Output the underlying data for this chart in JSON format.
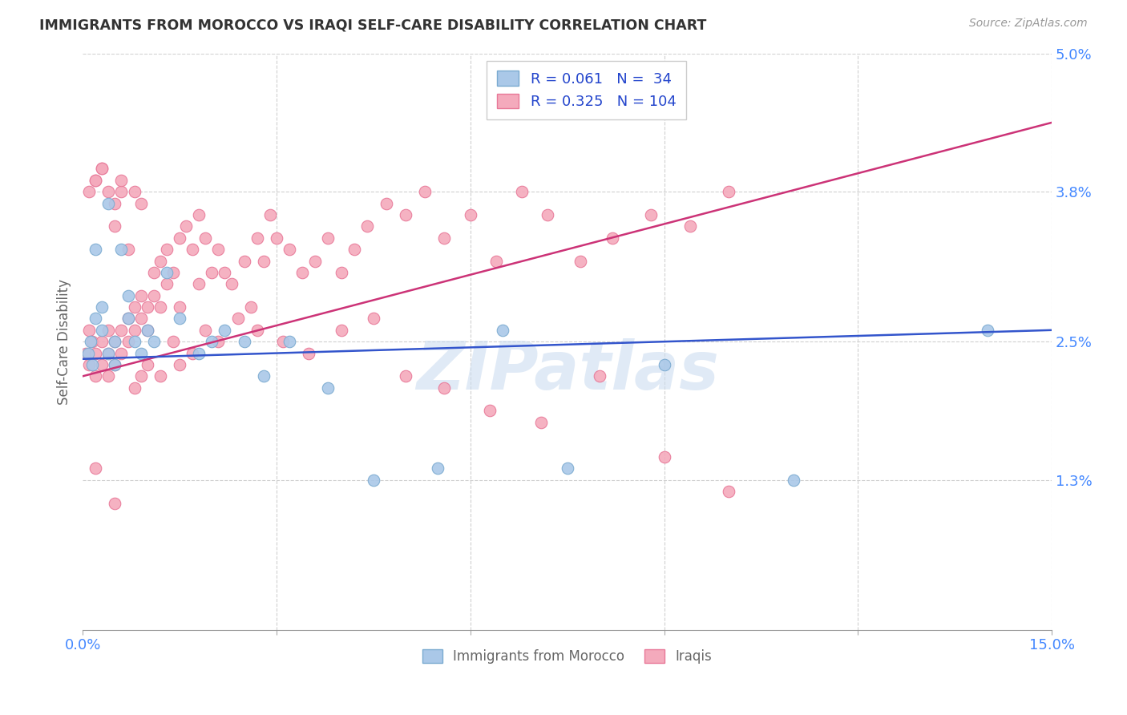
{
  "title": "IMMIGRANTS FROM MOROCCO VS IRAQI SELF-CARE DISABILITY CORRELATION CHART",
  "source": "Source: ZipAtlas.com",
  "ylabel_label": "Self-Care Disability",
  "x_min": 0.0,
  "x_max": 0.15,
  "y_min": 0.0,
  "y_max": 0.05,
  "grid_color": "#d0d0d0",
  "background_color": "#ffffff",
  "watermark": "ZIPatlas",
  "morocco_color": "#aac8e8",
  "iraq_color": "#f4aabc",
  "morocco_edge": "#7aaad0",
  "iraq_edge": "#e87898",
  "trend_morocco_color": "#3355cc",
  "trend_iraq_color": "#cc3377",
  "legend_R_morocco": "0.061",
  "legend_N_morocco": "34",
  "legend_R_iraq": "0.325",
  "legend_N_iraq": "104",
  "morocco_x": [
    0.0008,
    0.0012,
    0.0015,
    0.002,
    0.002,
    0.003,
    0.003,
    0.004,
    0.004,
    0.005,
    0.005,
    0.006,
    0.007,
    0.007,
    0.008,
    0.009,
    0.01,
    0.011,
    0.013,
    0.015,
    0.018,
    0.02,
    0.022,
    0.025,
    0.028,
    0.032,
    0.038,
    0.045,
    0.055,
    0.065,
    0.075,
    0.09,
    0.11,
    0.14
  ],
  "morocco_y": [
    0.024,
    0.025,
    0.023,
    0.027,
    0.033,
    0.028,
    0.026,
    0.037,
    0.024,
    0.025,
    0.023,
    0.033,
    0.029,
    0.027,
    0.025,
    0.024,
    0.026,
    0.025,
    0.031,
    0.027,
    0.024,
    0.025,
    0.026,
    0.025,
    0.022,
    0.025,
    0.021,
    0.013,
    0.014,
    0.026,
    0.014,
    0.023,
    0.013,
    0.026
  ],
  "iraq_x": [
    0.0005,
    0.001,
    0.001,
    0.0015,
    0.002,
    0.002,
    0.002,
    0.003,
    0.003,
    0.003,
    0.004,
    0.004,
    0.004,
    0.005,
    0.005,
    0.005,
    0.006,
    0.006,
    0.006,
    0.007,
    0.007,
    0.007,
    0.008,
    0.008,
    0.008,
    0.009,
    0.009,
    0.009,
    0.01,
    0.01,
    0.011,
    0.011,
    0.012,
    0.012,
    0.013,
    0.013,
    0.014,
    0.015,
    0.015,
    0.016,
    0.017,
    0.018,
    0.018,
    0.019,
    0.02,
    0.021,
    0.022,
    0.023,
    0.025,
    0.026,
    0.027,
    0.028,
    0.029,
    0.03,
    0.032,
    0.034,
    0.036,
    0.038,
    0.04,
    0.042,
    0.044,
    0.047,
    0.05,
    0.053,
    0.056,
    0.06,
    0.064,
    0.068,
    0.072,
    0.077,
    0.082,
    0.088,
    0.094,
    0.1,
    0.001,
    0.002,
    0.003,
    0.004,
    0.005,
    0.006,
    0.008,
    0.009,
    0.01,
    0.012,
    0.014,
    0.015,
    0.017,
    0.019,
    0.021,
    0.024,
    0.027,
    0.031,
    0.035,
    0.04,
    0.045,
    0.05,
    0.056,
    0.063,
    0.071,
    0.08,
    0.09,
    0.1,
    0.002,
    0.005
  ],
  "iraq_y": [
    0.024,
    0.023,
    0.026,
    0.025,
    0.024,
    0.022,
    0.039,
    0.025,
    0.04,
    0.023,
    0.026,
    0.024,
    0.022,
    0.035,
    0.025,
    0.023,
    0.026,
    0.038,
    0.024,
    0.027,
    0.033,
    0.025,
    0.028,
    0.038,
    0.026,
    0.029,
    0.037,
    0.027,
    0.028,
    0.026,
    0.031,
    0.029,
    0.032,
    0.028,
    0.033,
    0.03,
    0.031,
    0.034,
    0.028,
    0.035,
    0.033,
    0.036,
    0.03,
    0.034,
    0.031,
    0.033,
    0.031,
    0.03,
    0.032,
    0.028,
    0.034,
    0.032,
    0.036,
    0.034,
    0.033,
    0.031,
    0.032,
    0.034,
    0.031,
    0.033,
    0.035,
    0.037,
    0.036,
    0.038,
    0.034,
    0.036,
    0.032,
    0.038,
    0.036,
    0.032,
    0.034,
    0.036,
    0.035,
    0.038,
    0.038,
    0.039,
    0.04,
    0.038,
    0.037,
    0.039,
    0.021,
    0.022,
    0.023,
    0.022,
    0.025,
    0.023,
    0.024,
    0.026,
    0.025,
    0.027,
    0.026,
    0.025,
    0.024,
    0.026,
    0.027,
    0.022,
    0.021,
    0.019,
    0.018,
    0.022,
    0.015,
    0.012,
    0.014,
    0.011
  ]
}
